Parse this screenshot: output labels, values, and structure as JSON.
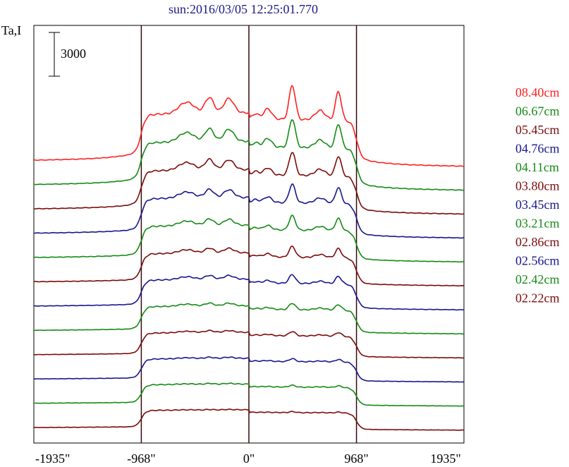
{
  "chart_data": {
    "type": "line",
    "title": "sun:2016/03/05 12:25:01.770",
    "ylabel": "Ta,I",
    "scale_bar_label": "3000",
    "scale_bar_value": 3000,
    "xlim": [
      -1935,
      1935
    ],
    "xticks": [
      {
        "value": -1935,
        "label": "-1935\""
      },
      {
        "value": -968,
        "label": "-968\""
      },
      {
        "value": 0,
        "label": "0\""
      },
      {
        "value": 968,
        "label": "968\""
      },
      {
        "value": 1935,
        "label": "1935\""
      }
    ],
    "vlines": [
      -968,
      0,
      968
    ],
    "grid": false,
    "legend_position": "right",
    "series": [
      {
        "name": "08.40cm",
        "color": "#ff2020",
        "baseline": 0,
        "peaks": [
          3200,
          4700
        ]
      },
      {
        "name": "06.67cm",
        "color": "#158a15",
        "baseline": 0,
        "peaks": [
          2800,
          4200
        ]
      },
      {
        "name": "05.45cm",
        "color": "#7b0a0a",
        "baseline": 0,
        "peaks": [
          2300,
          3700
        ]
      },
      {
        "name": "04.76cm",
        "color": "#16168f",
        "baseline": 0,
        "peaks": [
          1900,
          3200
        ]
      },
      {
        "name": "04.11cm",
        "color": "#158a15",
        "baseline": 0,
        "peaks": [
          1500,
          2700
        ]
      },
      {
        "name": "03.80cm",
        "color": "#7b0a0a",
        "baseline": 0,
        "peaks": [
          1100,
          2200
        ]
      },
      {
        "name": "03.45cm",
        "color": "#16168f",
        "baseline": 0,
        "peaks": [
          900,
          1900
        ]
      },
      {
        "name": "03.21cm",
        "color": "#158a15",
        "baseline": 0,
        "peaks": [
          700,
          1500
        ]
      },
      {
        "name": "02.86cm",
        "color": "#7b0a0a",
        "baseline": 0,
        "peaks": [
          500,
          1100
        ]
      },
      {
        "name": "02.56cm",
        "color": "#16168f",
        "baseline": 0,
        "peaks": [
          350,
          800
        ]
      },
      {
        "name": "02.42cm",
        "color": "#158a15",
        "baseline": 0,
        "peaks": [
          250,
          550
        ]
      },
      {
        "name": "02.22cm",
        "color": "#7b0a0a",
        "baseline": 0,
        "peaks": [
          150,
          300
        ]
      }
    ]
  }
}
